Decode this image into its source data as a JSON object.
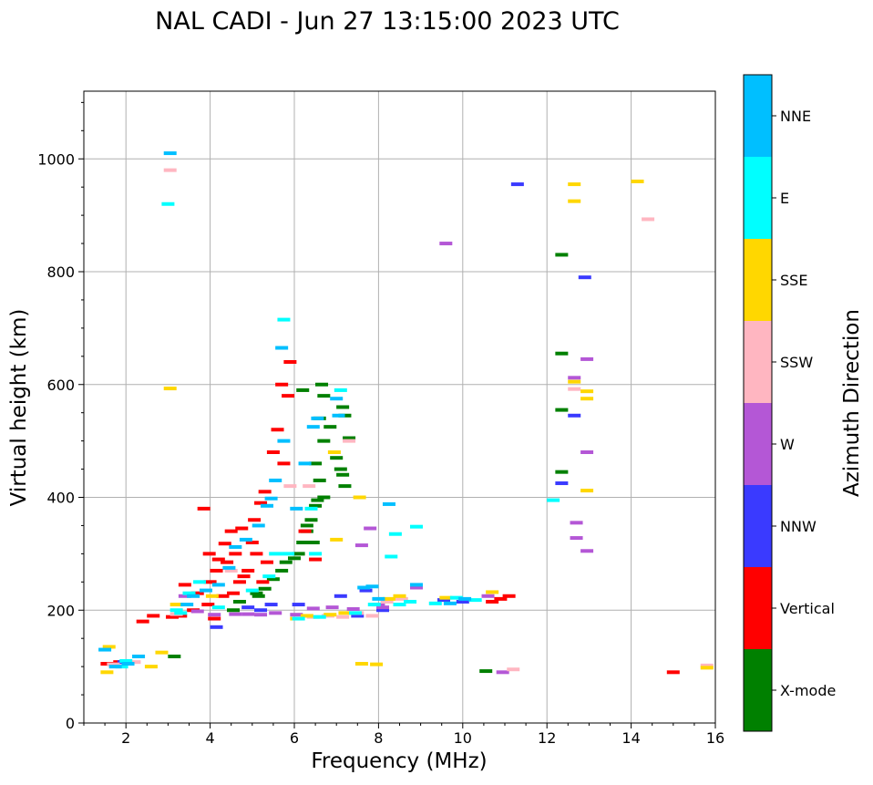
{
  "chart_data": {
    "type": "scatter",
    "title": "NAL CADI - Jun 27 13:15:00 2023 UTC",
    "xlabel": "Frequency (MHz)",
    "ylabel": "Virtual height (km)",
    "xlim": [
      1,
      16
    ],
    "ylim": [
      0,
      1120
    ],
    "xticks": [
      2,
      4,
      6,
      8,
      10,
      12,
      14,
      16
    ],
    "yticks": [
      0,
      200,
      400,
      600,
      800,
      1000
    ],
    "grid": true,
    "colorbar": {
      "label": "Azimuth Direction",
      "categories": [
        "X-mode",
        "Vertical",
        "NNW",
        "W",
        "SSW",
        "SSE",
        "E",
        "NNE"
      ],
      "colors": [
        "#008000",
        "#ff0000",
        "#3a3aff",
        "#b457d6",
        "#ffb6c1",
        "#ffd700",
        "#00ffff",
        "#00bfff"
      ]
    },
    "series": [
      {
        "name": "X-mode",
        "points": [
          [
            3.15,
            118
          ],
          [
            4.55,
            200
          ],
          [
            4.7,
            215
          ],
          [
            5.1,
            230
          ],
          [
            5.15,
            225
          ],
          [
            5.3,
            238
          ],
          [
            5.5,
            255
          ],
          [
            5.7,
            270
          ],
          [
            5.8,
            285
          ],
          [
            6.0,
            292
          ],
          [
            6.1,
            300
          ],
          [
            6.2,
            320
          ],
          [
            6.3,
            340
          ],
          [
            6.4,
            360
          ],
          [
            6.5,
            385
          ],
          [
            6.55,
            395
          ],
          [
            6.7,
            400
          ],
          [
            6.6,
            430
          ],
          [
            6.5,
            460
          ],
          [
            6.7,
            500
          ],
          [
            6.85,
            525
          ],
          [
            7.0,
            470
          ],
          [
            7.1,
            450
          ],
          [
            7.15,
            440
          ],
          [
            7.2,
            420
          ],
          [
            6.6,
            540
          ],
          [
            6.65,
            600
          ],
          [
            6.7,
            580
          ],
          [
            7.15,
            560
          ],
          [
            7.2,
            545
          ],
          [
            7.3,
            505
          ],
          [
            6.2,
            590
          ],
          [
            10.55,
            92
          ],
          [
            12.35,
            830
          ],
          [
            12.35,
            655
          ],
          [
            12.35,
            555
          ],
          [
            12.35,
            445
          ],
          [
            6.3,
            350
          ],
          [
            6.45,
            320
          ]
        ]
      },
      {
        "name": "Vertical",
        "points": [
          [
            1.55,
            105
          ],
          [
            1.85,
            108
          ],
          [
            2.4,
            180
          ],
          [
            2.65,
            190
          ],
          [
            3.1,
            188
          ],
          [
            3.3,
            190
          ],
          [
            3.4,
            245
          ],
          [
            3.6,
            200
          ],
          [
            3.7,
            230
          ],
          [
            3.85,
            380
          ],
          [
            3.95,
            210
          ],
          [
            3.98,
            300
          ],
          [
            4.0,
            250
          ],
          [
            4.1,
            185
          ],
          [
            4.15,
            270
          ],
          [
            4.2,
            290
          ],
          [
            4.3,
            225
          ],
          [
            4.35,
            318
          ],
          [
            4.4,
            285
          ],
          [
            4.5,
            340
          ],
          [
            4.55,
            230
          ],
          [
            4.6,
            300
          ],
          [
            4.7,
            250
          ],
          [
            4.75,
            345
          ],
          [
            4.8,
            260
          ],
          [
            4.9,
            270
          ],
          [
            5.0,
            320
          ],
          [
            5.05,
            360
          ],
          [
            5.1,
            300
          ],
          [
            5.2,
            390
          ],
          [
            5.25,
            250
          ],
          [
            5.3,
            410
          ],
          [
            5.35,
            285
          ],
          [
            5.5,
            480
          ],
          [
            5.6,
            520
          ],
          [
            5.7,
            600
          ],
          [
            5.75,
            460
          ],
          [
            5.85,
            580
          ],
          [
            5.9,
            640
          ],
          [
            6.25,
            340
          ],
          [
            6.5,
            290
          ],
          [
            10.7,
            215
          ],
          [
            10.9,
            220
          ],
          [
            11.1,
            225
          ],
          [
            15.0,
            90
          ]
        ]
      },
      {
        "name": "NNW",
        "points": [
          [
            1.95,
            108
          ],
          [
            4.15,
            170
          ],
          [
            4.9,
            205
          ],
          [
            5.2,
            200
          ],
          [
            5.45,
            210
          ],
          [
            6.1,
            210
          ],
          [
            7.1,
            225
          ],
          [
            7.5,
            190
          ],
          [
            7.7,
            235
          ],
          [
            8.1,
            200
          ],
          [
            9.55,
            218
          ],
          [
            10.0,
            215
          ],
          [
            11.3,
            955
          ],
          [
            12.65,
            545
          ],
          [
            12.35,
            425
          ],
          [
            12.9,
            790
          ]
        ]
      },
      {
        "name": "W",
        "points": [
          [
            3.4,
            225
          ],
          [
            3.7,
            198
          ],
          [
            4.1,
            192
          ],
          [
            4.6,
            193
          ],
          [
            4.9,
            193
          ],
          [
            5.2,
            192
          ],
          [
            5.55,
            195
          ],
          [
            6.05,
            192
          ],
          [
            6.45,
            203
          ],
          [
            6.9,
            205
          ],
          [
            7.4,
            202
          ],
          [
            7.8,
            345
          ],
          [
            8.0,
            210
          ],
          [
            8.1,
            205
          ],
          [
            8.9,
            240
          ],
          [
            10.6,
            225
          ],
          [
            10.95,
            90
          ],
          [
            12.65,
            612
          ],
          [
            12.95,
            645
          ],
          [
            12.95,
            480
          ],
          [
            12.7,
            355
          ],
          [
            12.7,
            328
          ],
          [
            12.95,
            305
          ],
          [
            9.6,
            850
          ],
          [
            7.6,
            315
          ]
        ]
      },
      {
        "name": "SSW",
        "points": [
          [
            1.7,
            104
          ],
          [
            2.2,
            108
          ],
          [
            3.05,
            980
          ],
          [
            3.2,
            193
          ],
          [
            4.5,
            270
          ],
          [
            6.35,
            420
          ],
          [
            6.45,
            188
          ],
          [
            6.8,
            190
          ],
          [
            7.15,
            188
          ],
          [
            7.5,
            195
          ],
          [
            7.85,
            190
          ],
          [
            8.2,
            215
          ],
          [
            8.55,
            220
          ],
          [
            11.2,
            95
          ],
          [
            12.65,
            592
          ],
          [
            14.4,
            893
          ],
          [
            15.8,
            102
          ],
          [
            7.3,
            500
          ],
          [
            5.9,
            420
          ]
        ]
      },
      {
        "name": "SSE",
        "points": [
          [
            1.55,
            90
          ],
          [
            1.6,
            135
          ],
          [
            2.6,
            100
          ],
          [
            2.85,
            125
          ],
          [
            3.05,
            593
          ],
          [
            3.2,
            210
          ],
          [
            4.05,
            225
          ],
          [
            6.05,
            185
          ],
          [
            6.3,
            190
          ],
          [
            6.85,
            192
          ],
          [
            7.2,
            195
          ],
          [
            7.55,
            400
          ],
          [
            7.6,
            105
          ],
          [
            7.95,
            104
          ],
          [
            8.25,
            220
          ],
          [
            8.5,
            225
          ],
          [
            9.6,
            222
          ],
          [
            10.7,
            232
          ],
          [
            12.65,
            955
          ],
          [
            12.65,
            925
          ],
          [
            12.65,
            605
          ],
          [
            12.95,
            588
          ],
          [
            12.95,
            575
          ],
          [
            12.95,
            412
          ],
          [
            14.15,
            960
          ],
          [
            15.8,
            98
          ],
          [
            7.0,
            325
          ],
          [
            6.95,
            480
          ]
        ]
      },
      {
        "name": "E",
        "points": [
          [
            1.9,
            100
          ],
          [
            2.0,
            110
          ],
          [
            3.0,
            920
          ],
          [
            3.2,
            200
          ],
          [
            3.3,
            195
          ],
          [
            3.5,
            230
          ],
          [
            3.75,
            250
          ],
          [
            4.2,
            205
          ],
          [
            5.0,
            235
          ],
          [
            5.4,
            260
          ],
          [
            5.55,
            300
          ],
          [
            5.75,
            715
          ],
          [
            5.85,
            300
          ],
          [
            6.1,
            185
          ],
          [
            6.4,
            380
          ],
          [
            6.5,
            300
          ],
          [
            6.6,
            188
          ],
          [
            7.1,
            590
          ],
          [
            7.45,
            195
          ],
          [
            7.9,
            210
          ],
          [
            8.3,
            295
          ],
          [
            8.5,
            210
          ],
          [
            8.75,
            215
          ],
          [
            8.9,
            348
          ],
          [
            9.35,
            212
          ],
          [
            9.85,
            222
          ],
          [
            10.3,
            218
          ],
          [
            12.15,
            395
          ],
          [
            8.4,
            335
          ]
        ]
      },
      {
        "name": "NNE",
        "points": [
          [
            1.5,
            130
          ],
          [
            1.75,
            100
          ],
          [
            2.05,
            105
          ],
          [
            2.3,
            118
          ],
          [
            3.05,
            1010
          ],
          [
            3.45,
            210
          ],
          [
            3.6,
            225
          ],
          [
            3.9,
            235
          ],
          [
            4.2,
            245
          ],
          [
            4.45,
            275
          ],
          [
            4.6,
            312
          ],
          [
            4.85,
            325
          ],
          [
            5.15,
            350
          ],
          [
            5.35,
            385
          ],
          [
            5.45,
            398
          ],
          [
            5.55,
            430
          ],
          [
            5.7,
            665
          ],
          [
            5.75,
            500
          ],
          [
            6.05,
            380
          ],
          [
            6.25,
            460
          ],
          [
            6.45,
            525
          ],
          [
            6.55,
            540
          ],
          [
            7.0,
            575
          ],
          [
            7.05,
            545
          ],
          [
            7.65,
            240
          ],
          [
            7.85,
            242
          ],
          [
            8.0,
            220
          ],
          [
            8.25,
            388
          ],
          [
            8.9,
            245
          ],
          [
            9.7,
            212
          ],
          [
            10.05,
            220
          ]
        ]
      }
    ]
  }
}
